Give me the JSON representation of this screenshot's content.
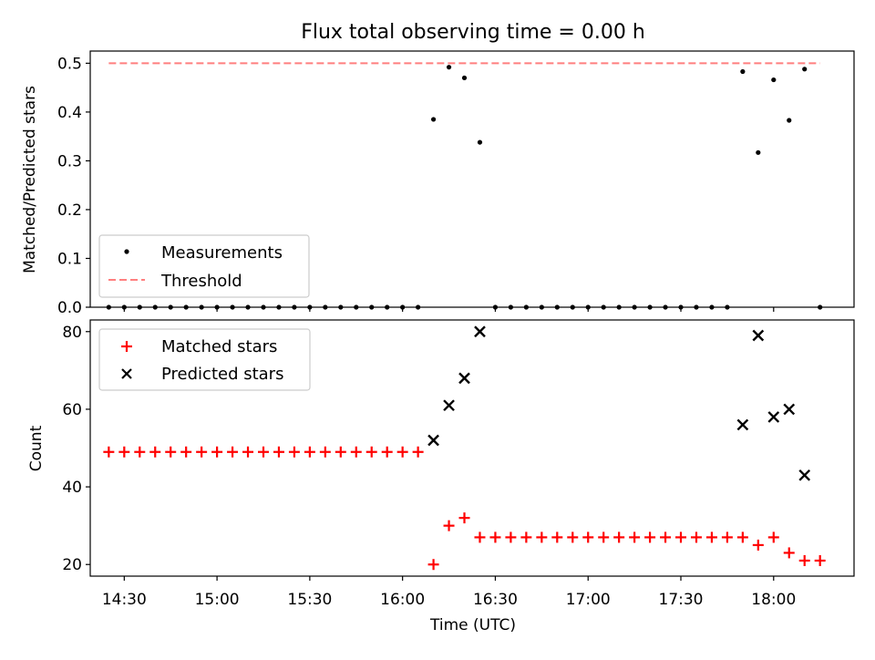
{
  "title": "Flux total observing time = 0.00 h",
  "colors": {
    "measurements": "#000000",
    "threshold": "#ff7f7f",
    "matched": "#ff0000",
    "predicted": "#000000"
  },
  "chart_data": [
    {
      "type": "scatter",
      "ylabel": "Matched/Predicted stars",
      "ylim": [
        0,
        0.525
      ],
      "yticks": [
        "0.0",
        "0.1",
        "0.2",
        "0.3",
        "0.4",
        "0.5"
      ],
      "legend": {
        "placement": "lower-left",
        "entries": [
          "Measurements",
          "Threshold"
        ]
      },
      "threshold": {
        "name": "Threshold",
        "y": 0.5,
        "x_range": [
          "14:25",
          "18:15"
        ]
      },
      "series": [
        {
          "name": "Measurements",
          "points": [
            [
              "14:25",
              0
            ],
            [
              "14:30",
              0
            ],
            [
              "14:35",
              0
            ],
            [
              "14:40",
              0
            ],
            [
              "14:45",
              0
            ],
            [
              "14:50",
              0
            ],
            [
              "14:55",
              0
            ],
            [
              "15:00",
              0
            ],
            [
              "15:05",
              0
            ],
            [
              "15:10",
              0
            ],
            [
              "15:15",
              0
            ],
            [
              "15:20",
              0
            ],
            [
              "15:25",
              0
            ],
            [
              "15:30",
              0
            ],
            [
              "15:35",
              0
            ],
            [
              "15:40",
              0
            ],
            [
              "15:45",
              0
            ],
            [
              "15:50",
              0
            ],
            [
              "15:55",
              0
            ],
            [
              "16:00",
              0
            ],
            [
              "16:05",
              0
            ],
            [
              "16:10",
              0.385
            ],
            [
              "16:15",
              0.492
            ],
            [
              "16:20",
              0.47
            ],
            [
              "16:25",
              0.338
            ],
            [
              "16:30",
              0
            ],
            [
              "16:35",
              0
            ],
            [
              "16:40",
              0
            ],
            [
              "16:45",
              0
            ],
            [
              "16:50",
              0
            ],
            [
              "16:55",
              0
            ],
            [
              "17:00",
              0
            ],
            [
              "17:05",
              0
            ],
            [
              "17:10",
              0
            ],
            [
              "17:15",
              0
            ],
            [
              "17:20",
              0
            ],
            [
              "17:25",
              0
            ],
            [
              "17:30",
              0
            ],
            [
              "17:35",
              0
            ],
            [
              "17:40",
              0
            ],
            [
              "17:45",
              0
            ],
            [
              "17:50",
              0.483
            ],
            [
              "17:55",
              0.317
            ],
            [
              "18:00",
              0.466
            ],
            [
              "18:05",
              0.383
            ],
            [
              "18:10",
              0.488
            ],
            [
              "18:15",
              0
            ]
          ]
        }
      ]
    },
    {
      "type": "scatter",
      "xlabel": "Time (UTC)",
      "ylabel": "Count",
      "ylim": [
        17,
        83
      ],
      "yticks": [
        "20",
        "40",
        "60",
        "80"
      ],
      "xticks": [
        "14:30",
        "15:00",
        "15:30",
        "16:00",
        "16:30",
        "17:00",
        "17:30",
        "18:00"
      ],
      "legend": {
        "placement": "upper-left",
        "entries": [
          "Matched stars",
          "Predicted stars"
        ]
      },
      "series": [
        {
          "name": "Matched stars",
          "marker": "plus",
          "points": [
            [
              "14:25",
              49
            ],
            [
              "14:30",
              49
            ],
            [
              "14:35",
              49
            ],
            [
              "14:40",
              49
            ],
            [
              "14:45",
              49
            ],
            [
              "14:50",
              49
            ],
            [
              "14:55",
              49
            ],
            [
              "15:00",
              49
            ],
            [
              "15:05",
              49
            ],
            [
              "15:10",
              49
            ],
            [
              "15:15",
              49
            ],
            [
              "15:20",
              49
            ],
            [
              "15:25",
              49
            ],
            [
              "15:30",
              49
            ],
            [
              "15:35",
              49
            ],
            [
              "15:40",
              49
            ],
            [
              "15:45",
              49
            ],
            [
              "15:50",
              49
            ],
            [
              "15:55",
              49
            ],
            [
              "16:00",
              49
            ],
            [
              "16:05",
              49
            ],
            [
              "16:10",
              20
            ],
            [
              "16:15",
              30
            ],
            [
              "16:20",
              32
            ],
            [
              "16:25",
              27
            ],
            [
              "16:30",
              27
            ],
            [
              "16:35",
              27
            ],
            [
              "16:40",
              27
            ],
            [
              "16:45",
              27
            ],
            [
              "16:50",
              27
            ],
            [
              "16:55",
              27
            ],
            [
              "17:00",
              27
            ],
            [
              "17:05",
              27
            ],
            [
              "17:10",
              27
            ],
            [
              "17:15",
              27
            ],
            [
              "17:20",
              27
            ],
            [
              "17:25",
              27
            ],
            [
              "17:30",
              27
            ],
            [
              "17:35",
              27
            ],
            [
              "17:40",
              27
            ],
            [
              "17:45",
              27
            ],
            [
              "17:50",
              27
            ],
            [
              "17:55",
              25
            ],
            [
              "18:00",
              27
            ],
            [
              "18:05",
              23
            ],
            [
              "18:10",
              21
            ],
            [
              "18:15",
              21
            ]
          ]
        },
        {
          "name": "Predicted stars",
          "marker": "x",
          "points": [
            [
              "16:10",
              52
            ],
            [
              "16:15",
              61
            ],
            [
              "16:20",
              68
            ],
            [
              "16:25",
              80
            ],
            [
              "17:50",
              56
            ],
            [
              "17:55",
              79
            ],
            [
              "18:00",
              58
            ],
            [
              "18:05",
              60
            ],
            [
              "18:10",
              43
            ]
          ]
        }
      ]
    }
  ]
}
